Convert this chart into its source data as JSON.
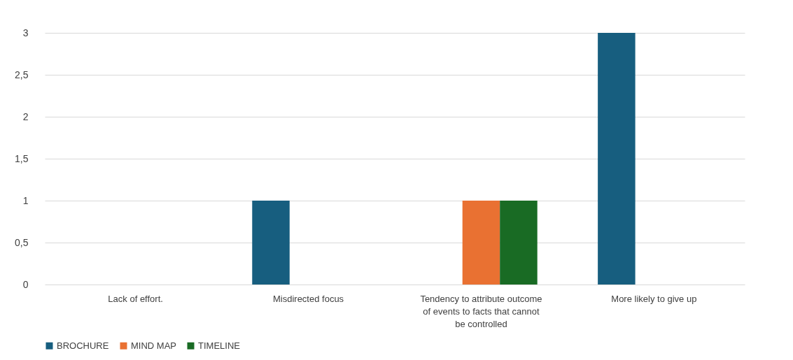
{
  "chart_data": {
    "type": "bar",
    "categories": [
      "Lack of effort.",
      "Misdirected focus",
      "Tendency to attribute outcome of events to facts that cannot be controlled",
      "More likely to give up"
    ],
    "series": [
      {
        "name": "BROCHURE",
        "color": "#175e7f",
        "values": [
          0,
          1,
          0,
          3
        ]
      },
      {
        "name": "MIND MAP",
        "color": "#e97132",
        "values": [
          0,
          0,
          1,
          0
        ]
      },
      {
        "name": "TIMELINE",
        "color": "#196b24",
        "values": [
          0,
          0,
          1,
          0
        ]
      }
    ],
    "ylim": [
      0,
      3
    ],
    "yticks": [
      0,
      {
        "value": 0.5,
        "label": "0,5"
      },
      1,
      {
        "value": 1.5,
        "label": "1,5"
      },
      2,
      {
        "value": 2.5,
        "label": "2,5"
      },
      3
    ],
    "grid": "y",
    "legend": "bottom"
  }
}
